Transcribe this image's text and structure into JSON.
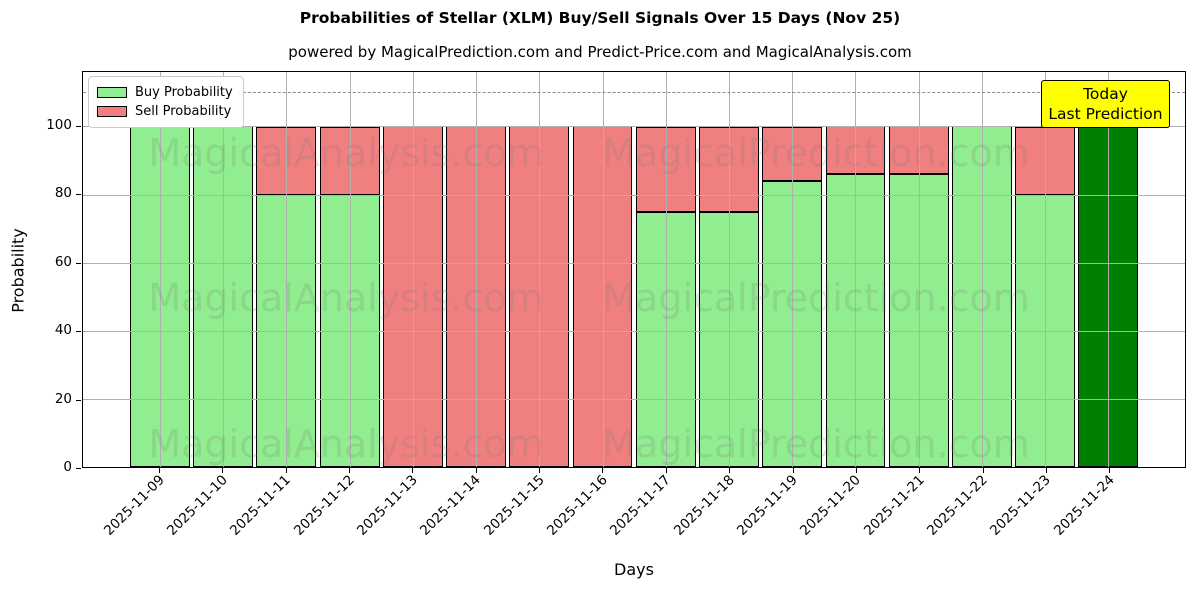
{
  "title": "Probabilities of Stellar (XLM) Buy/Sell Signals Over 15 Days (Nov 25)",
  "subtitle": "powered by MagicalPrediction.com and Predict-Price.com and MagicalAnalysis.com",
  "legend": [
    {
      "label": "Buy Probability",
      "color": "#90ee90"
    },
    {
      "label": "Sell Probability",
      "color": "#f08080"
    }
  ],
  "annotation_box": {
    "line1": "Today",
    "line2": "Last Prediction",
    "bg": "#ffff00"
  },
  "watermarks": {
    "left": "MagicalAnalysis.com",
    "right": "MagicalPrediction.com"
  },
  "colors": {
    "buy": "#90ee90",
    "sell": "#f08080",
    "today_bar": "#008000",
    "grid": "#b0b0b0",
    "annotation_bg": "#ffff00"
  },
  "chart_data": {
    "type": "bar",
    "stacked": true,
    "title": "Probabilities of Stellar (XLM) Buy/Sell Signals Over 15 Days (Nov 25)",
    "xlabel": "Days",
    "ylabel": "Probability",
    "ylim": [
      0,
      116
    ],
    "yticks": [
      0,
      20,
      40,
      60,
      80,
      100
    ],
    "grid": true,
    "legend_position": "upper left",
    "dashed_line_y": 110,
    "categories": [
      "2025-11-09",
      "2025-11-10",
      "2025-11-11",
      "2025-11-12",
      "2025-11-13",
      "2025-11-14",
      "2025-11-15",
      "2025-11-16",
      "2025-11-17",
      "2025-11-18",
      "2025-11-19",
      "2025-11-20",
      "2025-11-21",
      "2025-11-22",
      "2025-11-23",
      "2025-11-24"
    ],
    "series": [
      {
        "name": "Buy Probability",
        "color": "#90ee90",
        "values": [
          100,
          100,
          80,
          80,
          0,
          0,
          0,
          0,
          75,
          75,
          84,
          86,
          86,
          100,
          80,
          100
        ]
      },
      {
        "name": "Sell Probability",
        "color": "#f08080",
        "values": [
          0,
          0,
          20,
          20,
          100,
          100,
          100,
          100,
          25,
          25,
          16,
          14,
          14,
          0,
          20,
          0
        ]
      }
    ],
    "today_bar": {
      "index": 15,
      "color": "#008000",
      "label": "Today Last Prediction"
    }
  }
}
